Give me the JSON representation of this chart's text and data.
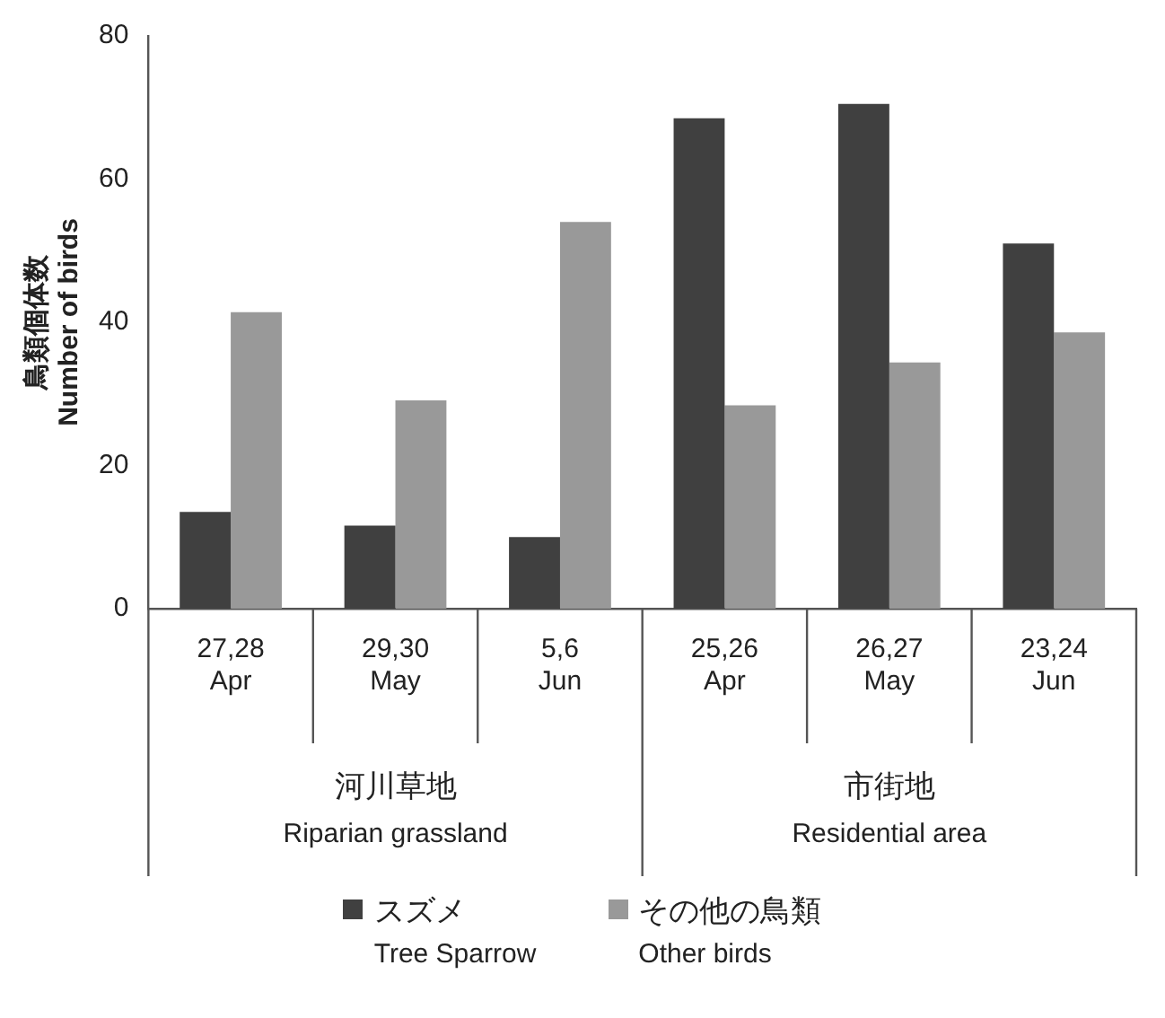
{
  "chart_data": {
    "type": "bar",
    "ylabel": "鳥類個体数\nNumber of birds",
    "categories": [
      "27,28\nApr",
      "29,30\nMay",
      "5,6\nJun",
      "25,26\nApr",
      "26,27\nMay",
      "23,24\nJun"
    ],
    "series": [
      {
        "name": "スズメ\nTree Sparrow",
        "color": "#404040",
        "values": [
          13.5,
          11.6,
          10,
          68.5,
          70.5,
          51
        ]
      },
      {
        "name": "その他の鳥類\nOther birds",
        "color": "#999999",
        "values": [
          41.4,
          29.1,
          54,
          28.4,
          34.4,
          38.6
        ]
      }
    ],
    "annotations": [
      "河川草地\nRiparian grassland",
      "市街地\nResidential area"
    ],
    "ylim": [
      0,
      80
    ],
    "yticks": [
      0,
      20,
      40,
      60,
      80
    ],
    "grid": false,
    "legend": "bottom"
  }
}
